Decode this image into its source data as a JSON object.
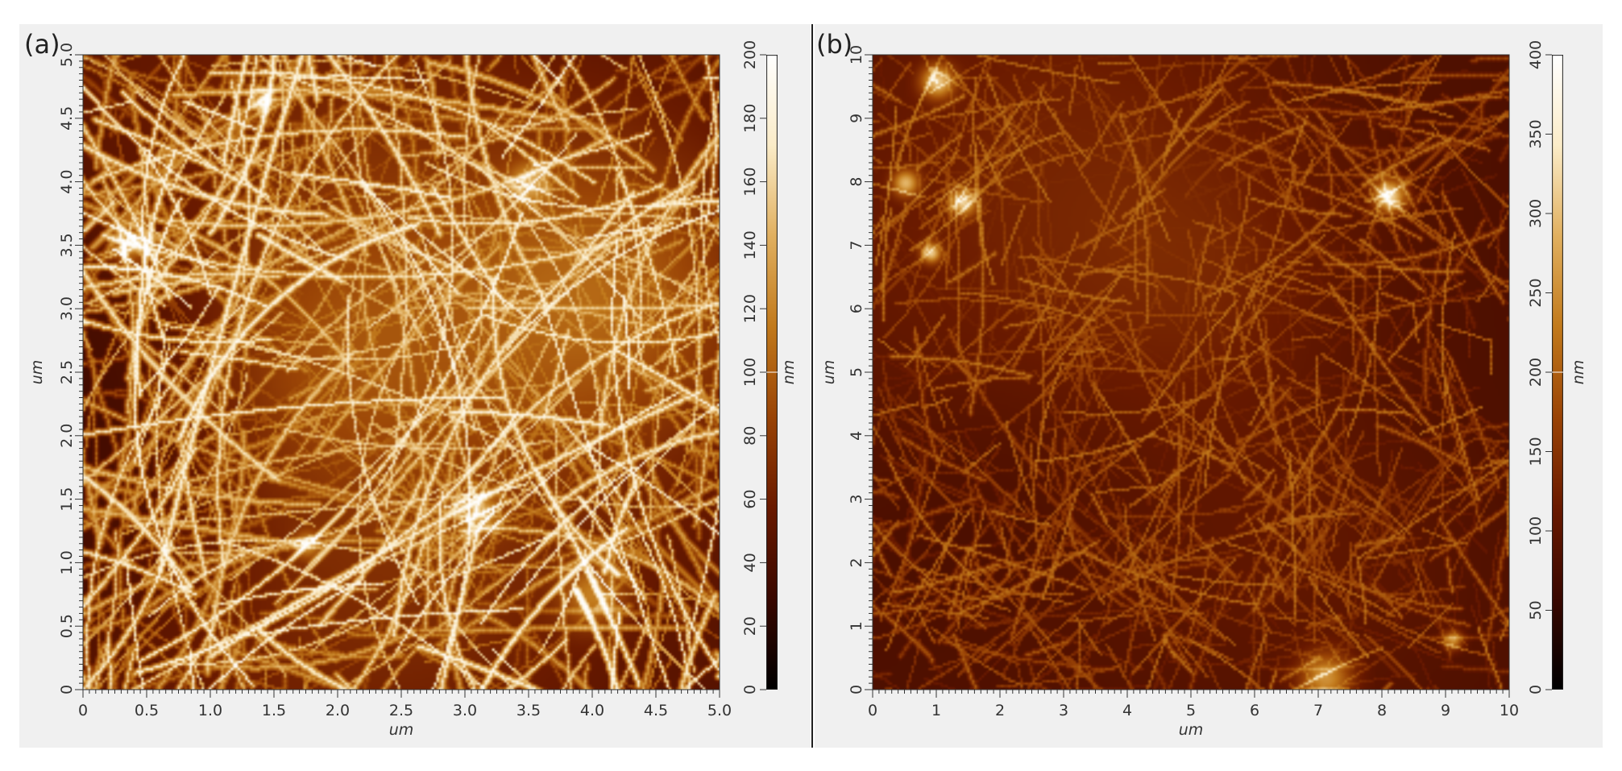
{
  "colors": {
    "background": "#f0f0f0",
    "afm_colormap": [
      "#000000",
      "#3a0800",
      "#6a1a00",
      "#9a4406",
      "#c27a1c",
      "#e1b060",
      "#fbecc8",
      "#ffffff"
    ]
  },
  "panels": [
    {
      "label": "(a)",
      "x_axis": {
        "title": "um",
        "ticks": [
          "0",
          "0.5",
          "1.0",
          "1.5",
          "2.0",
          "2.5",
          "3.0",
          "3.5",
          "4.0",
          "4.5",
          "5.0"
        ]
      },
      "y_axis": {
        "title": "um",
        "ticks": [
          "0",
          "0.5",
          "1.0",
          "1.5",
          "2.0",
          "2.5",
          "3.0",
          "3.5",
          "4.0",
          "4.5",
          "5.0"
        ]
      },
      "colorbar": {
        "unit": "nm",
        "ticks": [
          "0",
          "20",
          "40",
          "60",
          "80",
          "100",
          "120",
          "140",
          "160",
          "180",
          "200"
        ]
      }
    },
    {
      "label": "(b)",
      "x_axis": {
        "title": "um",
        "ticks": [
          "0",
          "1",
          "2",
          "3",
          "4",
          "5",
          "6",
          "7",
          "8",
          "9",
          "10"
        ]
      },
      "y_axis": {
        "title": "um",
        "ticks": [
          "0",
          "1",
          "2",
          "3",
          "4",
          "5",
          "6",
          "7",
          "8",
          "9",
          "10"
        ]
      },
      "colorbar": {
        "unit": "nm",
        "ticks": [
          "0",
          "50",
          "100",
          "150",
          "200",
          "250",
          "300",
          "350",
          "400"
        ]
      }
    }
  ]
}
